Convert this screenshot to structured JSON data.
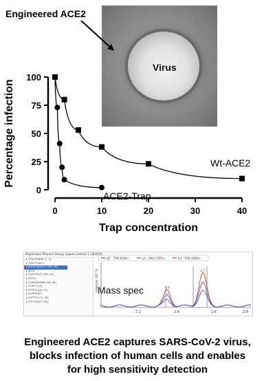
{
  "micrograph": {
    "engineered_label": "Engineered ACE2",
    "virus_label": "Virus"
  },
  "chart_data": {
    "type": "scatter",
    "xlabel": "Trap concentration",
    "ylabel": "Percentage infection",
    "xlim": [
      0,
      40
    ],
    "ylim": [
      0,
      100
    ],
    "xticks": [
      0,
      10,
      20,
      30,
      40
    ],
    "yticks": [
      0,
      25,
      50,
      75,
      100
    ],
    "series": [
      {
        "name": "Wt-ACE2",
        "marker": "square",
        "x": [
          0,
          2,
          5,
          10,
          20,
          40
        ],
        "y": [
          100,
          80,
          53,
          38,
          23,
          10
        ]
      },
      {
        "name": "ACE2-Trap",
        "marker": "circle",
        "x": [
          0,
          0.5,
          1,
          1.5,
          2,
          10
        ],
        "y": [
          100,
          73,
          41,
          20,
          9,
          2
        ]
      }
    ]
  },
  "mass_spec": {
    "label": "Mass spec",
    "list_title": "Replicates  Plasma Decoy digest control 1 183020",
    "rows": [
      "SYQ[TSNRYR [1 .3]",
      "TKN ETGNV+",
      "ELEG[?][NSG IY [56, 36]",
      "VELR",
      "FLGPTRGQT [58, 50]",
      "VETR? ",
      "FLPPIGMGRRA [58, 59]",
      "FLYPT? [29]",
      "VFYITH [56, 50]",
      "FLYRGIGN+",
      "FLYTTP? [71, 36]",
      "VETYEKKS? [58]"
    ],
    "legend": [
      "y5 - 799.5416+",
      "y4 - 646.2705+",
      "b3 - 558.1646+"
    ],
    "xticks": [
      "2.2",
      "2.4",
      "2.6",
      "2.8"
    ],
    "yaxis": "Intensity (10^3)",
    "peak_labels": [
      "2.4",
      "2.7"
    ],
    "colors": {
      "red": "#c0392b",
      "purple": "#6a4fb3",
      "blue": "#3b5ac6"
    }
  },
  "caption": {
    "line1": "Engineered ACE2 captures SARS-CoV-2 virus,",
    "line2": "blocks infection of human cells and enables",
    "line3": "for high sensitivity detection"
  }
}
